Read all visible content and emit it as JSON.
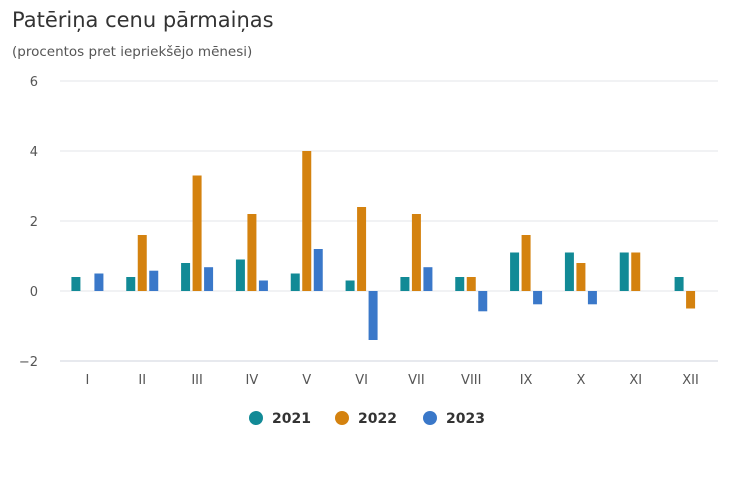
{
  "chart_data": {
    "type": "bar",
    "title": "Patēriņa cenu pārmaiņas",
    "subtitle": "(procentos pret iepriekšējo mēnesi)",
    "categories": [
      "I",
      "II",
      "III",
      "IV",
      "V",
      "VI",
      "VII",
      "VIII",
      "IX",
      "X",
      "XI",
      "XII"
    ],
    "series": [
      {
        "name": "2021",
        "color": "#128a96",
        "values": [
          0.4,
          0.4,
          0.8,
          0.9,
          0.5,
          0.3,
          0.4,
          0.4,
          1.1,
          1.1,
          1.1,
          0.4
        ]
      },
      {
        "name": "2022",
        "color": "#d4820f",
        "values": [
          null,
          1.6,
          3.3,
          2.2,
          4.0,
          2.4,
          2.2,
          0.4,
          1.6,
          0.8,
          1.1,
          -0.5
        ]
      },
      {
        "name": "2023",
        "color": "#3a78c9",
        "values": [
          0.5,
          0.58,
          0.68,
          0.3,
          1.2,
          -1.4,
          0.68,
          -0.58,
          -0.38,
          -0.38,
          null,
          null
        ]
      }
    ],
    "y_ticks": [
      -2,
      0,
      2,
      4,
      6
    ],
    "y_tick_labels": [
      "−2",
      "0",
      "2",
      "4",
      "6"
    ],
    "ylim": [
      -2,
      6
    ],
    "grid": true,
    "legend_position": "bottom-center"
  }
}
